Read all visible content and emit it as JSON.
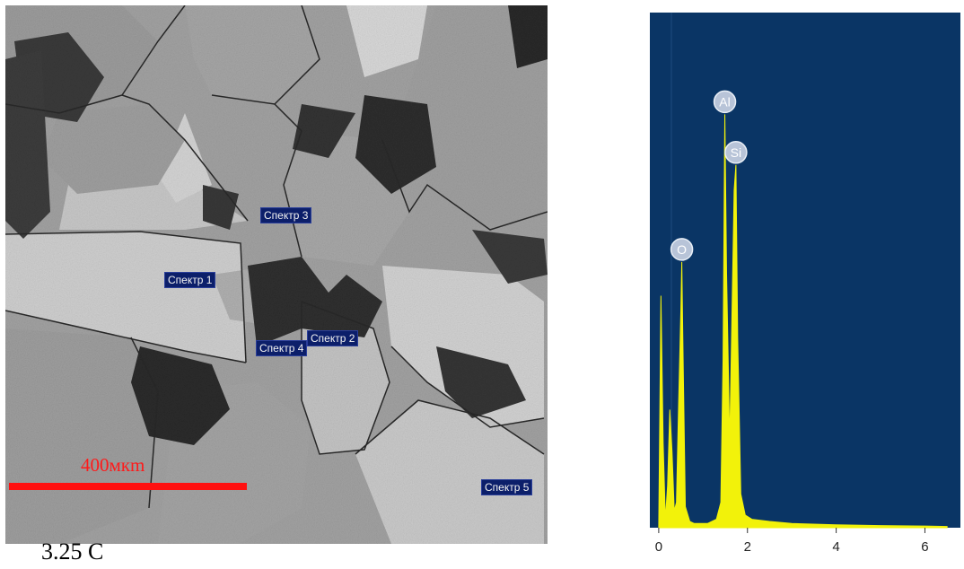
{
  "sem_image": {
    "spectrum_labels": [
      "Спектр 1",
      "Спектр 2",
      "Спектр 3",
      "Спектр 4",
      "Спектр 5"
    ],
    "scale_bar_label": "400мкm"
  },
  "caption": "3.25 С",
  "colors": {
    "spectrum_bg": "#0a3565",
    "spectrum_fill": "#f2f20a",
    "scale_bar": "#ff1010",
    "label_bg": "#0c1f6a"
  },
  "chart_data": {
    "type": "area",
    "title": "",
    "xlabel": "",
    "ylabel": "",
    "xlim": [
      -0.2,
      6.8
    ],
    "ylim": [
      0,
      100
    ],
    "x_ticks": [
      "0",
      "2",
      "4",
      "6"
    ],
    "peaks": [
      {
        "element": "O",
        "x": 0.52,
        "y": 63
      },
      {
        "element": "Al",
        "x": 1.49,
        "y": 98
      },
      {
        "element": "Si",
        "x": 1.74,
        "y": 86
      }
    ],
    "series": [
      {
        "x": [
          0.0,
          0.05,
          0.1,
          0.15,
          0.2,
          0.25,
          0.3,
          0.35,
          0.4,
          0.45,
          0.5,
          0.52,
          0.55,
          0.6,
          0.7,
          0.8,
          0.9,
          1.0,
          1.1,
          1.2,
          1.3,
          1.4,
          1.45,
          1.49,
          1.53,
          1.6,
          1.65,
          1.7,
          1.74,
          1.78,
          1.85,
          1.95,
          2.1,
          2.5,
          3.0,
          4.0,
          5.0,
          6.0,
          6.5
        ],
        "y": [
          0,
          55,
          20,
          2,
          10,
          28,
          18,
          4,
          6,
          30,
          52,
          63,
          40,
          5,
          1.5,
          1,
          1,
          1,
          1,
          1.5,
          2,
          6,
          40,
          98,
          60,
          20,
          50,
          80,
          86,
          45,
          8,
          3,
          2,
          1.5,
          1,
          0.7,
          0.5,
          0.4,
          0.3
        ]
      }
    ]
  }
}
